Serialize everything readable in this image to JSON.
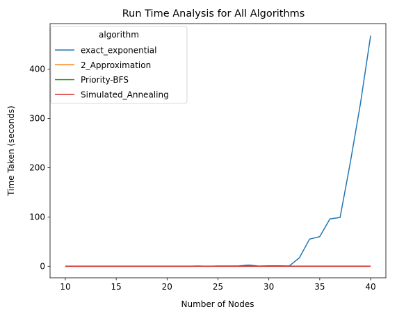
{
  "chart_data": {
    "type": "line",
    "title": "Run Time Analysis for All Algorithms",
    "xlabel": "Number of Nodes",
    "ylabel": "Time Taken (seconds)",
    "xlim": [
      8.5,
      41.5
    ],
    "ylim": [
      -23.5,
      492.5
    ],
    "xticks": [
      10,
      15,
      20,
      25,
      30,
      35,
      40
    ],
    "yticks": [
      0,
      100,
      200,
      300,
      400
    ],
    "grid": false,
    "legend": {
      "title": "algorithm",
      "placement": "top-left"
    },
    "x": [
      10,
      11,
      12,
      13,
      14,
      15,
      16,
      17,
      18,
      19,
      20,
      21,
      22,
      23,
      24,
      25,
      26,
      27,
      28,
      29,
      30,
      31,
      32,
      33,
      34,
      35,
      36,
      37,
      38,
      39,
      40
    ],
    "series": [
      {
        "name": "exact_exponential",
        "color": "#1f77b4",
        "values": [
          0,
          0,
          0,
          0,
          0,
          0,
          0,
          0,
          0,
          0,
          0,
          0,
          0,
          0.5,
          0,
          0.5,
          0.5,
          0.5,
          2.5,
          0.3,
          0.8,
          0.8,
          0.5,
          17,
          55,
          60,
          96,
          99,
          210,
          330,
          468
        ]
      },
      {
        "name": "2_Approximation",
        "color": "#ff7f0e",
        "values": [
          0,
          0,
          0,
          0,
          0,
          0,
          0,
          0,
          0,
          0,
          0,
          0,
          0,
          0,
          0,
          0,
          0,
          0,
          0,
          0,
          0,
          0,
          0,
          0,
          0,
          0,
          0,
          0,
          0,
          0,
          0
        ]
      },
      {
        "name": "Priority-BFS",
        "color": "#2ca02c",
        "values": [
          0,
          0,
          0,
          0,
          0,
          0,
          0,
          0,
          0,
          0,
          0,
          0,
          0,
          0,
          0,
          0,
          0,
          0,
          0,
          0,
          0,
          0,
          0,
          0,
          0,
          0,
          0,
          0,
          0,
          0,
          0
        ]
      },
      {
        "name": "Simulated_Annealing",
        "color": "#d62728",
        "values": [
          0.1,
          0.1,
          0.1,
          0.1,
          0.1,
          0.1,
          0.1,
          0.1,
          0.1,
          0.1,
          0.1,
          0.1,
          0.1,
          0.1,
          0.1,
          0.1,
          0.1,
          0.1,
          0.1,
          0.1,
          0.1,
          0.1,
          0.1,
          0.1,
          0.1,
          0.1,
          0.1,
          0.1,
          0.1,
          0.1,
          0.1
        ]
      }
    ]
  }
}
